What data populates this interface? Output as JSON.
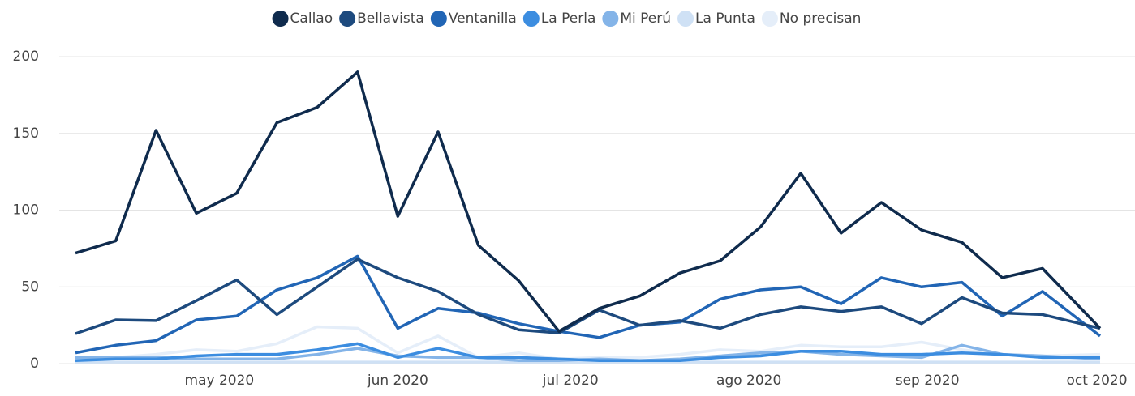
{
  "chart_data": {
    "type": "line",
    "x": [
      "2020-04-06",
      "2020-04-13",
      "2020-04-20",
      "2020-04-27",
      "2020-05-04",
      "2020-05-11",
      "2020-05-18",
      "2020-05-25",
      "2020-06-01",
      "2020-06-08",
      "2020-06-15",
      "2020-06-22",
      "2020-06-29",
      "2020-07-06",
      "2020-07-13",
      "2020-07-20",
      "2020-07-27",
      "2020-08-03",
      "2020-08-10",
      "2020-08-17",
      "2020-08-24",
      "2020-08-31",
      "2020-09-07",
      "2020-09-14",
      "2020-09-21",
      "2020-10-01"
    ],
    "xlim": [
      "2020-04-06",
      "2020-10-01"
    ],
    "xticks": [
      {
        "value": "2020-05-01",
        "label": "may 2020"
      },
      {
        "value": "2020-06-01",
        "label": "jun 2020"
      },
      {
        "value": "2020-07-01",
        "label": "jul 2020"
      },
      {
        "value": "2020-08-01",
        "label": "ago 2020"
      },
      {
        "value": "2020-09-01",
        "label": "sep 2020"
      },
      {
        "value": "2020-10-01",
        "label": "oct 2020"
      }
    ],
    "ylim": [
      0,
      200
    ],
    "yticks": [
      0,
      50,
      100,
      150,
      200
    ],
    "grid": true,
    "legend": "top",
    "series": [
      {
        "name": "Callao",
        "color": "#0f2b4d",
        "values": [
          72,
          80,
          152,
          98,
          111,
          157,
          167,
          190,
          96,
          151,
          77,
          54,
          21,
          36,
          44,
          59,
          67,
          89,
          124,
          85,
          105,
          87,
          79,
          56,
          62,
          23
        ]
      },
      {
        "name": "Bellavista",
        "color": "#1d4a7e",
        "values": [
          19.5,
          28.5,
          28,
          41,
          54.5,
          32,
          50,
          68,
          56,
          47,
          32,
          22,
          20,
          35,
          25,
          28,
          23,
          32,
          37,
          34,
          37,
          26,
          43,
          33,
          32,
          23
        ]
      },
      {
        "name": "Ventanilla",
        "color": "#2165b5",
        "values": [
          7,
          12,
          15,
          28.5,
          31,
          48,
          56,
          70,
          23,
          36,
          33,
          26,
          21,
          17,
          25,
          27,
          42,
          48,
          50,
          39,
          56,
          50,
          53,
          31,
          47,
          18
        ]
      },
      {
        "name": "La Perla",
        "color": "#3c8de0",
        "values": [
          2,
          3,
          3,
          5,
          6,
          6,
          9,
          13,
          4,
          10,
          4,
          4,
          3,
          2,
          2,
          2,
          4,
          5,
          8,
          8,
          6,
          6,
          7,
          6,
          4,
          4
        ]
      },
      {
        "name": "Mi Perú",
        "color": "#84b4e8",
        "values": [
          4,
          4,
          4,
          3,
          3,
          3,
          6,
          10,
          5,
          4,
          4,
          2,
          2,
          3,
          2,
          3,
          5,
          7,
          8,
          6,
          5,
          4,
          12,
          6,
          5,
          3
        ]
      },
      {
        "name": "La Punta",
        "color": "#cfe1f5",
        "values": [
          1,
          1,
          1,
          1,
          1,
          1,
          1,
          1,
          1,
          1,
          1,
          1,
          1,
          1,
          1,
          1,
          1,
          1,
          1,
          1,
          1,
          1,
          1,
          1,
          1,
          1
        ]
      },
      {
        "name": "No precisan",
        "color": "#e5eef9",
        "values": [
          3,
          4,
          6,
          9,
          8,
          13,
          24,
          23,
          7,
          18,
          4,
          7,
          3,
          4,
          4,
          6,
          9,
          8,
          12,
          11,
          11,
          14,
          9,
          6,
          5,
          6
        ]
      }
    ]
  }
}
